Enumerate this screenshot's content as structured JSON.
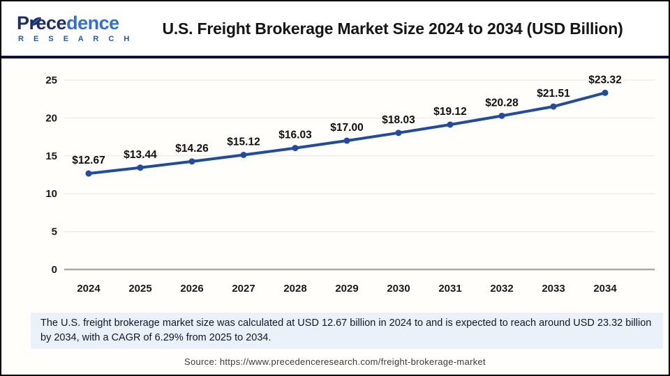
{
  "header": {
    "logo": {
      "line1_dark": "Prece",
      "line1_light": "dence",
      "line2": "R E S E A R C H",
      "leaf_icon": "leaf-icon"
    },
    "title": "U.S. Freight Brokerage Market Size 2024 to 2034 (USD Billion)"
  },
  "chart_data": {
    "type": "line",
    "categories": [
      "2024",
      "2025",
      "2026",
      "2027",
      "2028",
      "2029",
      "2030",
      "2031",
      "2032",
      "2033",
      "2034"
    ],
    "values": [
      12.67,
      13.44,
      14.26,
      15.12,
      16.03,
      17.0,
      18.03,
      19.12,
      20.28,
      21.51,
      23.32
    ],
    "point_labels": [
      "$12.67",
      "$13.44",
      "$14.26",
      "$15.12",
      "$16.03",
      "$17.00",
      "$18.03",
      "$19.12",
      "$20.28",
      "$21.51",
      "$23.32"
    ],
    "title": "U.S. Freight Brokerage Market Size 2024 to 2034 (USD Billion)",
    "xlabel": "",
    "ylabel": "",
    "ylim": [
      0,
      25
    ],
    "yticks": [
      0,
      5,
      10,
      15,
      20,
      25
    ],
    "grid": "horizontal",
    "legend": "none",
    "line_color": "#1f4ba3",
    "marker_color": "#1f4ba3",
    "gridline_color": "#e4e4e4",
    "baseline_color": "#a9a9a9"
  },
  "note": {
    "text": "The U.S. freight brokerage market size was calculated at USD 12.67 billion in 2024 to and is expected to reach around USD 23.32 billion by 2034, with a CAGR of 6.29% from 2025 to 2034."
  },
  "source": {
    "text": "Source: https://www.precedenceresearch.com/freight-brokerage-market"
  },
  "colors": {
    "divider_navy": "#0e1238",
    "note_bg": "#eaf1fb",
    "logo_dark": "#1d2e6b",
    "logo_light": "#2f6fd8",
    "logo_research": "#2456c5"
  }
}
